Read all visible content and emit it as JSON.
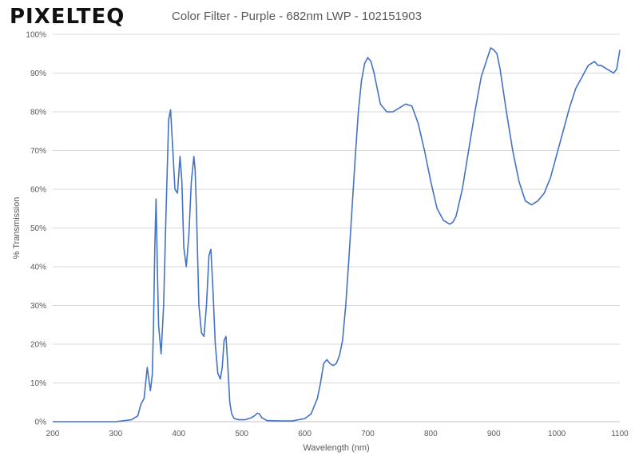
{
  "logo": {
    "text": "PIXELTEQ"
  },
  "chart_data": {
    "type": "line",
    "title": "Color Filter - Purple - 682nm LWP - 102151903",
    "xlabel": "Wavelength (nm)",
    "ylabel": "% Transmission",
    "xlim": [
      200,
      1100
    ],
    "ylim": [
      0,
      100
    ],
    "x_ticks": [
      200,
      300,
      400,
      500,
      600,
      700,
      800,
      900,
      1000,
      1100
    ],
    "y_ticks": [
      0,
      10,
      20,
      30,
      40,
      50,
      60,
      70,
      80,
      90,
      100
    ],
    "y_tick_labels": [
      "0%",
      "10%",
      "20%",
      "30%",
      "40%",
      "50%",
      "60%",
      "70%",
      "80%",
      "90%",
      "100%"
    ],
    "grid": "horizontal",
    "line_color": "#4472c4",
    "series": [
      {
        "x": [
          200,
          300,
          325,
          335,
          340,
          345,
          350,
          355,
          358,
          360,
          362,
          364,
          366,
          368,
          372,
          376,
          380,
          384,
          387,
          390,
          394,
          398,
          402,
          405,
          408,
          412,
          416,
          420,
          424,
          426,
          428,
          432,
          436,
          440,
          444,
          448,
          451,
          454,
          458,
          462,
          466,
          469,
          472,
          475,
          478,
          481,
          484,
          488,
          495,
          505,
          515,
          520,
          525,
          528,
          532,
          540,
          560,
          580,
          600,
          610,
          620,
          625,
          630,
          635,
          640,
          645,
          650,
          655,
          660,
          665,
          670,
          675,
          680,
          685,
          690,
          695,
          700,
          705,
          710,
          715,
          720,
          730,
          740,
          750,
          760,
          770,
          780,
          790,
          800,
          810,
          820,
          830,
          835,
          840,
          850,
          860,
          870,
          880,
          890,
          895,
          900,
          905,
          910,
          920,
          930,
          940,
          950,
          960,
          970,
          980,
          990,
          1000,
          1010,
          1020,
          1030,
          1040,
          1050,
          1060,
          1065,
          1070,
          1080,
          1090,
          1095,
          1100
        ],
        "values": [
          0,
          0,
          0.5,
          1.5,
          4.5,
          6,
          14,
          8,
          12,
          25,
          45,
          57.5,
          40,
          25,
          17.5,
          30,
          55,
          78,
          80.5,
          72,
          60,
          59,
          68.5,
          62,
          45,
          40,
          48,
          62,
          68.5,
          65,
          55,
          30,
          23,
          22,
          30,
          43,
          44.5,
          35,
          20,
          12.5,
          11,
          14,
          21,
          22,
          14,
          5,
          2,
          0.8,
          0.5,
          0.5,
          1,
          1.5,
          2.2,
          2,
          1,
          0.3,
          0.2,
          0.2,
          0.8,
          2,
          6,
          10,
          15,
          16,
          15,
          14.5,
          15,
          17,
          21,
          30,
          42,
          55,
          68,
          80,
          88,
          92.5,
          94,
          93,
          90,
          86,
          82,
          80,
          80,
          81,
          82,
          81.5,
          77,
          70,
          62,
          55,
          52,
          51,
          51.5,
          53,
          60,
          70,
          80,
          89,
          94,
          96.5,
          96,
          95,
          91,
          80,
          70,
          62,
          57,
          56,
          57,
          59,
          63,
          69,
          75,
          81,
          86,
          89,
          92,
          93,
          92,
          92,
          91,
          90,
          91,
          96
        ]
      }
    ]
  }
}
